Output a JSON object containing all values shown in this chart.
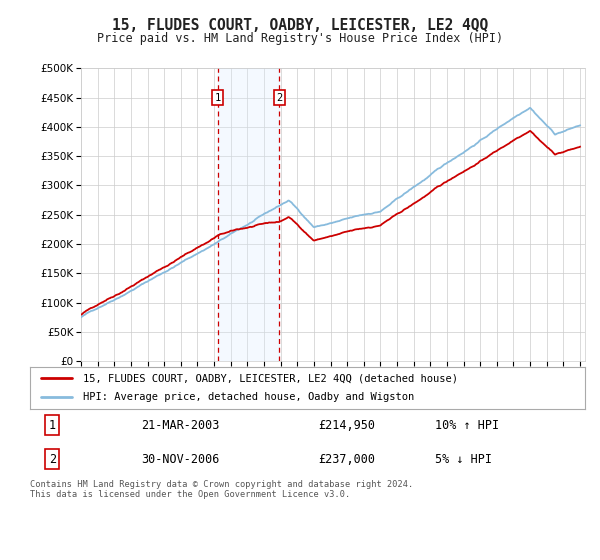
{
  "title": "15, FLUDES COURT, OADBY, LEICESTER, LE2 4QQ",
  "subtitle": "Price paid vs. HM Land Registry's House Price Index (HPI)",
  "legend_text_1": "15, FLUDES COURT, OADBY, LEICESTER, LE2 4QQ (detached house)",
  "legend_text_2": "HPI: Average price, detached house, Oadby and Wigston",
  "transaction_1_date": "21-MAR-2003",
  "transaction_1_price": "£214,950",
  "transaction_1_hpi": "10% ↑ HPI",
  "transaction_2_date": "30-NOV-2006",
  "transaction_2_price": "£237,000",
  "transaction_2_hpi": "5% ↓ HPI",
  "footer": "Contains HM Land Registry data © Crown copyright and database right 2024.\nThis data is licensed under the Open Government Licence v3.0.",
  "ylim": [
    0,
    500000
  ],
  "yticks": [
    0,
    50000,
    100000,
    150000,
    200000,
    250000,
    300000,
    350000,
    400000,
    450000,
    500000
  ],
  "price_color": "#cc0000",
  "hpi_color": "#88bbdd",
  "shade_color": "#ddeeff",
  "marker_box_color": "#cc0000",
  "background_color": "#ffffff",
  "grid_color": "#cccccc",
  "t1_year": 2003.21,
  "t2_year": 2006.92
}
